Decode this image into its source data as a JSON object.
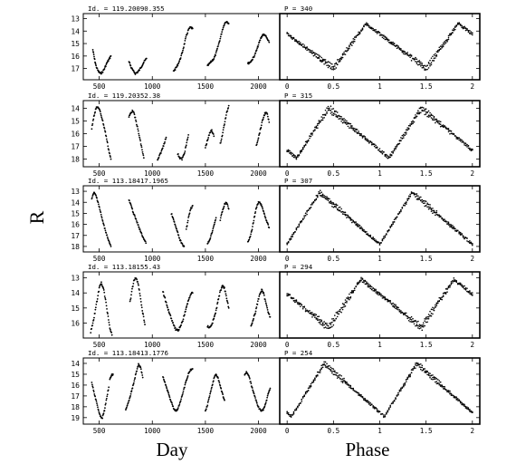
{
  "figure": {
    "ylabel": "R",
    "xlabel_left": "Day",
    "xlabel_right": "Phase"
  },
  "chart_data": [
    {
      "type": "scatter",
      "id_label": "Id. = 119.20090.355",
      "period_label": "P = 340",
      "period": 340,
      "y_ticks": [
        13,
        14,
        15,
        16,
        17
      ],
      "ylim": [
        17.9,
        12.6
      ],
      "day_segments": [
        {
          "x": [
            440,
            455,
            470,
            490,
            510,
            530,
            550,
            570,
            590,
            610
          ],
          "y": [
            15.5,
            16.2,
            16.8,
            17.2,
            17.4,
            17.3,
            17.0,
            16.6,
            16.3,
            16.0
          ]
        },
        {
          "x": [
            780,
            800,
            820,
            840,
            860,
            880,
            900,
            920,
            945
          ],
          "y": [
            16.4,
            16.9,
            17.2,
            17.4,
            17.3,
            17.1,
            16.8,
            16.5,
            16.2
          ]
        },
        {
          "x": [
            1200,
            1220,
            1240,
            1260,
            1280,
            1300,
            1320,
            1340,
            1360,
            1380
          ],
          "y": [
            17.2,
            17.0,
            16.7,
            16.3,
            15.8,
            15.1,
            14.4,
            13.9,
            13.7,
            13.8
          ]
        },
        {
          "x": [
            1520,
            1540,
            1560,
            1580,
            1600,
            1620,
            1640,
            1660,
            1680,
            1700,
            1720
          ],
          "y": [
            16.8,
            16.6,
            16.4,
            16.2,
            15.8,
            15.2,
            14.6,
            13.9,
            13.4,
            13.2,
            13.4
          ]
        },
        {
          "x": [
            1900,
            1920,
            1940,
            1960,
            1980,
            2000,
            2020,
            2040,
            2060,
            2080,
            2100
          ],
          "y": [
            16.6,
            16.5,
            16.3,
            16.0,
            15.6,
            15.1,
            14.6,
            14.3,
            14.3,
            14.6,
            14.9
          ]
        }
      ],
      "phase_min": 0.5,
      "phase_ymin": 17.0,
      "phase_ymax": 13.4
    },
    {
      "type": "scatter",
      "id_label": "Id. = 119.20352.38",
      "period_label": "P = 315",
      "period": 315,
      "y_ticks": [
        14,
        15,
        16,
        17,
        18
      ],
      "ylim": [
        18.6,
        13.4
      ],
      "day_segments": [
        {
          "x": [
            430,
            450,
            470,
            490,
            510,
            530,
            550,
            570,
            590,
            610
          ],
          "y": [
            15.6,
            14.6,
            14.0,
            13.9,
            14.3,
            14.9,
            15.6,
            16.4,
            17.3,
            18.0
          ]
        },
        {
          "x": [
            780,
            800,
            820,
            840,
            860,
            880,
            900,
            920
          ],
          "y": [
            14.7,
            14.3,
            14.2,
            14.8,
            15.5,
            16.3,
            17.1,
            17.9
          ]
        },
        {
          "x": [
            1050,
            1070,
            1090,
            1110,
            1130
          ],
          "y": [
            18.1,
            17.7,
            17.3,
            16.8,
            16.3
          ]
        },
        {
          "x": [
            1240,
            1260,
            1280,
            1300,
            1320,
            1340
          ],
          "y": [
            17.6,
            17.9,
            18.0,
            17.6,
            16.9,
            16.1
          ]
        },
        {
          "x": [
            1500,
            1520,
            1540,
            1560,
            1580
          ],
          "y": [
            17.1,
            16.5,
            16.0,
            15.7,
            16.2
          ]
        },
        {
          "x": [
            1640,
            1660,
            1680,
            1700,
            1720
          ],
          "y": [
            16.8,
            16.1,
            15.2,
            14.4,
            13.8
          ]
        },
        {
          "x": [
            1980,
            2000,
            2020,
            2040,
            2060,
            2080,
            2100
          ],
          "y": [
            16.9,
            16.3,
            15.6,
            14.9,
            14.4,
            14.4,
            15.1
          ]
        }
      ],
      "phase_min": 0.1,
      "phase_ymin": 17.9,
      "phase_ymax": 14.0
    },
    {
      "type": "scatter",
      "id_label": "Id. = 113.18417.1965",
      "period_label": "P = 307",
      "period": 307,
      "y_ticks": [
        13,
        14,
        15,
        16,
        17,
        18
      ],
      "ylim": [
        18.5,
        12.5
      ],
      "day_segments": [
        {
          "x": [
            430,
            450,
            470,
            490,
            510,
            530,
            550,
            570,
            590,
            610
          ],
          "y": [
            13.7,
            13.1,
            13.4,
            14.0,
            14.8,
            15.6,
            16.3,
            16.9,
            17.5,
            18.0
          ]
        },
        {
          "x": [
            780,
            800,
            820,
            840,
            860,
            880,
            900,
            920,
            940
          ],
          "y": [
            13.8,
            14.3,
            14.9,
            15.4,
            15.9,
            16.4,
            16.9,
            17.3,
            17.7
          ]
        },
        {
          "x": [
            1180,
            1200,
            1220,
            1240,
            1260,
            1280,
            1300
          ],
          "y": [
            15.0,
            15.6,
            16.2,
            16.8,
            17.4,
            17.8,
            18.0
          ]
        },
        {
          "x": [
            1320,
            1340,
            1360,
            1380
          ],
          "y": [
            16.5,
            15.4,
            14.6,
            14.3
          ]
        },
        {
          "x": [
            1520,
            1540,
            1560,
            1580,
            1600
          ],
          "y": [
            17.8,
            17.4,
            16.8,
            16.1,
            15.4
          ]
        },
        {
          "x": [
            1640,
            1660,
            1680,
            1700,
            1720
          ],
          "y": [
            15.6,
            14.8,
            14.2,
            14.0,
            14.6
          ]
        },
        {
          "x": [
            1900,
            1920,
            1940,
            1960,
            1980,
            2000,
            2020,
            2040,
            2060,
            2080,
            2100
          ],
          "y": [
            17.6,
            17.2,
            16.4,
            15.4,
            14.5,
            14.0,
            14.1,
            14.6,
            15.2,
            15.8,
            16.3
          ]
        }
      ],
      "phase_min": 0.0,
      "phase_ymin": 17.8,
      "phase_ymax": 13.1
    },
    {
      "type": "scatter",
      "id_label": "Id. = 113.18155.43",
      "period_label": "P = 294",
      "period": 294,
      "y_ticks": [
        13,
        14,
        15,
        16
      ],
      "ylim": [
        17.0,
        12.6
      ],
      "day_segments": [
        {
          "x": [
            420,
            440,
            460,
            480,
            500,
            520,
            540,
            560,
            580,
            600,
            620
          ],
          "y": [
            16.6,
            16.0,
            15.3,
            14.5,
            13.7,
            13.3,
            13.7,
            14.5,
            15.4,
            16.3,
            16.8
          ]
        },
        {
          "x": [
            790,
            810,
            830,
            850,
            870,
            890,
            910,
            930
          ],
          "y": [
            14.6,
            13.8,
            13.1,
            13.0,
            13.5,
            14.4,
            15.3,
            16.1
          ]
        },
        {
          "x": [
            1100,
            1120,
            1140,
            1160,
            1180,
            1200,
            1220,
            1240,
            1260,
            1280,
            1300,
            1320,
            1340,
            1360,
            1380
          ],
          "y": [
            13.9,
            14.4,
            14.9,
            15.3,
            15.7,
            16.1,
            16.4,
            16.5,
            16.3,
            16.0,
            15.5,
            15.0,
            14.5,
            14.1,
            14.0
          ]
        },
        {
          "x": [
            1520,
            1540,
            1560,
            1580,
            1600,
            1620,
            1640,
            1660,
            1680,
            1700,
            1720
          ],
          "y": [
            16.2,
            16.3,
            16.1,
            15.7,
            15.2,
            14.5,
            13.9,
            13.5,
            13.7,
            14.3,
            15.0
          ]
        },
        {
          "x": [
            1930,
            1950,
            1970,
            1990,
            2010,
            2030,
            2050,
            2070,
            2090,
            2110
          ],
          "y": [
            16.2,
            15.8,
            15.3,
            14.7,
            14.1,
            13.8,
            14.1,
            14.7,
            15.2,
            15.6
          ]
        }
      ],
      "phase_min": 0.45,
      "phase_ymin": 16.3,
      "phase_ymax": 13.1
    },
    {
      "type": "scatter",
      "id_label": "Id. = 113.18413.1776",
      "period_label": "P = 254",
      "period": 254,
      "y_ticks": [
        14,
        15,
        16,
        17,
        18,
        19
      ],
      "ylim": [
        19.6,
        13.5
      ],
      "day_segments": [
        {
          "x": [
            430,
            450,
            470,
            490,
            510,
            530,
            550,
            570,
            590
          ],
          "y": [
            15.8,
            16.6,
            17.4,
            18.2,
            18.9,
            19.0,
            18.3,
            17.2,
            16.2
          ]
        },
        {
          "x": [
            600,
            615,
            630
          ],
          "y": [
            15.4,
            15.1,
            15.0
          ]
        },
        {
          "x": [
            750,
            770,
            790,
            810,
            830,
            850,
            870,
            890,
            910
          ],
          "y": [
            18.2,
            17.7,
            17.1,
            16.4,
            15.6,
            14.8,
            14.1,
            14.4,
            15.3
          ]
        },
        {
          "x": [
            1100,
            1120,
            1140,
            1160,
            1180,
            1200,
            1220,
            1240,
            1260,
            1280,
            1300,
            1320,
            1340,
            1360,
            1380
          ],
          "y": [
            15.2,
            15.8,
            16.4,
            17.0,
            17.6,
            18.1,
            18.4,
            18.2,
            17.7,
            17.0,
            16.3,
            15.6,
            15.0,
            14.6,
            14.5
          ]
        },
        {
          "x": [
            1500,
            1520,
            1540,
            1560,
            1580,
            1600,
            1620,
            1640,
            1660,
            1680
          ],
          "y": [
            18.4,
            17.8,
            17.0,
            16.2,
            15.4,
            15.0,
            15.4,
            16.1,
            16.8,
            17.4
          ]
        },
        {
          "x": [
            1870,
            1890,
            1910,
            1930,
            1950,
            1970,
            1990,
            2010,
            2030,
            2050,
            2070,
            2090,
            2110
          ],
          "y": [
            15.0,
            14.8,
            15.2,
            15.9,
            16.6,
            17.2,
            17.8,
            18.2,
            18.4,
            18.2,
            17.6,
            16.9,
            16.3
          ]
        }
      ],
      "phase_min": 0.05,
      "phase_ymin": 18.9,
      "phase_ymax": 14.0
    }
  ],
  "axes": {
    "day_ticks": [
      500,
      1000,
      1500,
      2000
    ],
    "day_xlim": [
      350,
      2200
    ],
    "phase_ticks": [
      0,
      0.5,
      1,
      1.5,
      2
    ],
    "phase_tick_labels": [
      "0",
      "0.5",
      "1",
      "1.5",
      "2"
    ],
    "phase_xlim": [
      -0.08,
      2.08
    ]
  }
}
